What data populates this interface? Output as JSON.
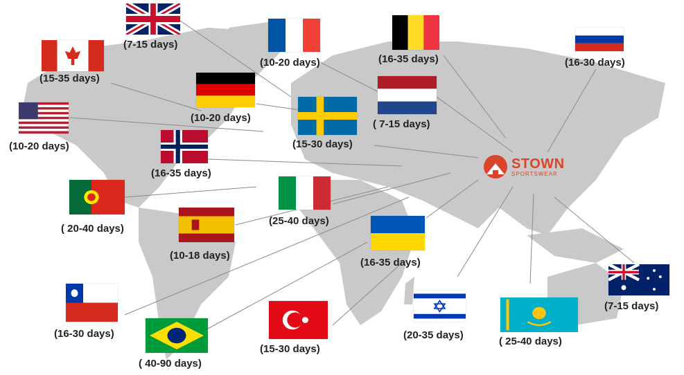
{
  "logo": {
    "brand": "STOWN",
    "sub": "SPORTSWEAR",
    "color": "#d9452b"
  },
  "map_color": "#c9c9c9",
  "destinations": [
    {
      "flag": "flag-uk-icon",
      "days": "(7-15 days)"
    },
    {
      "flag": "flag-france-icon",
      "days": "(10-20 days)"
    },
    {
      "flag": "flag-belgium-icon",
      "days": "(16-35 days)"
    },
    {
      "flag": "flag-russia-icon",
      "days": "(16-30 days)"
    },
    {
      "flag": "flag-canada-icon",
      "days": "(15-35 days)"
    },
    {
      "flag": "flag-germany-icon",
      "days": "(10-20 days)"
    },
    {
      "flag": "flag-netherlands-icon",
      "days": "( 7-15 days)"
    },
    {
      "flag": "flag-usa-icon",
      "days": "(10-20 days)"
    },
    {
      "flag": "flag-sweden-icon",
      "days": "(15-30 days)"
    },
    {
      "flag": "flag-norway-icon",
      "days": "(16-35 days)"
    },
    {
      "flag": "flag-portugal-icon",
      "days": "( 20-40 days)"
    },
    {
      "flag": "flag-italy-icon",
      "days": "(25-40 days)"
    },
    {
      "flag": "flag-spain-icon",
      "days": "(10-18 days)"
    },
    {
      "flag": "flag-ukraine-icon",
      "days": "(16-35 days)"
    },
    {
      "flag": "flag-chile-icon",
      "days": "(16-30 days)"
    },
    {
      "flag": "flag-brazil-icon",
      "days": "( 40-90 days)"
    },
    {
      "flag": "flag-turkey-icon",
      "days": "(15-30 days)"
    },
    {
      "flag": "flag-israel-icon",
      "days": "(20-35 days)"
    },
    {
      "flag": "flag-kazakhstan-icon",
      "days": "( 25-40 days)"
    },
    {
      "flag": "flag-australia-icon",
      "days": "(7-15 days)"
    }
  ]
}
